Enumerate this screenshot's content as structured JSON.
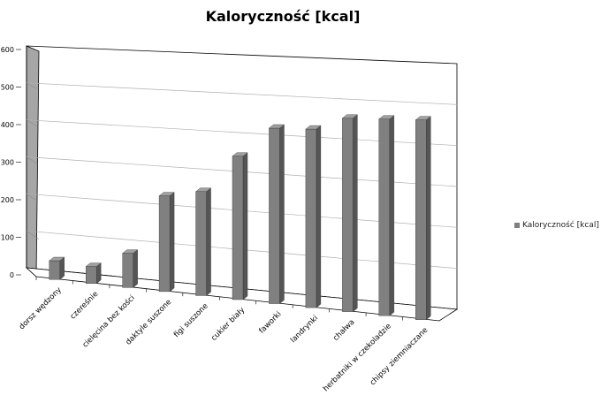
{
  "chart_data": {
    "type": "bar",
    "title": "Kaloryczność [kcal]",
    "xlabel": "",
    "ylabel": "",
    "ylim": [
      0,
      600
    ],
    "yticks": [
      0,
      100,
      200,
      300,
      400,
      500,
      600
    ],
    "grid": true,
    "legend_position": "right",
    "bar_color": "#808080",
    "categories": [
      "dorsz wędzony",
      "czereśnie",
      "cielęcina bez kości",
      "daktyle suszone",
      "figi suszone",
      "cukier biały",
      "faworki",
      "landrynki",
      "chałwa",
      "herbatniki w czekoladzie",
      "chipsy ziemniaczane"
    ],
    "series": [
      {
        "name": "Kaloryczność [kcal]",
        "values": [
          50,
          45,
          90,
          250,
          270,
          370,
          450,
          455,
          490,
          495,
          500
        ]
      }
    ]
  }
}
